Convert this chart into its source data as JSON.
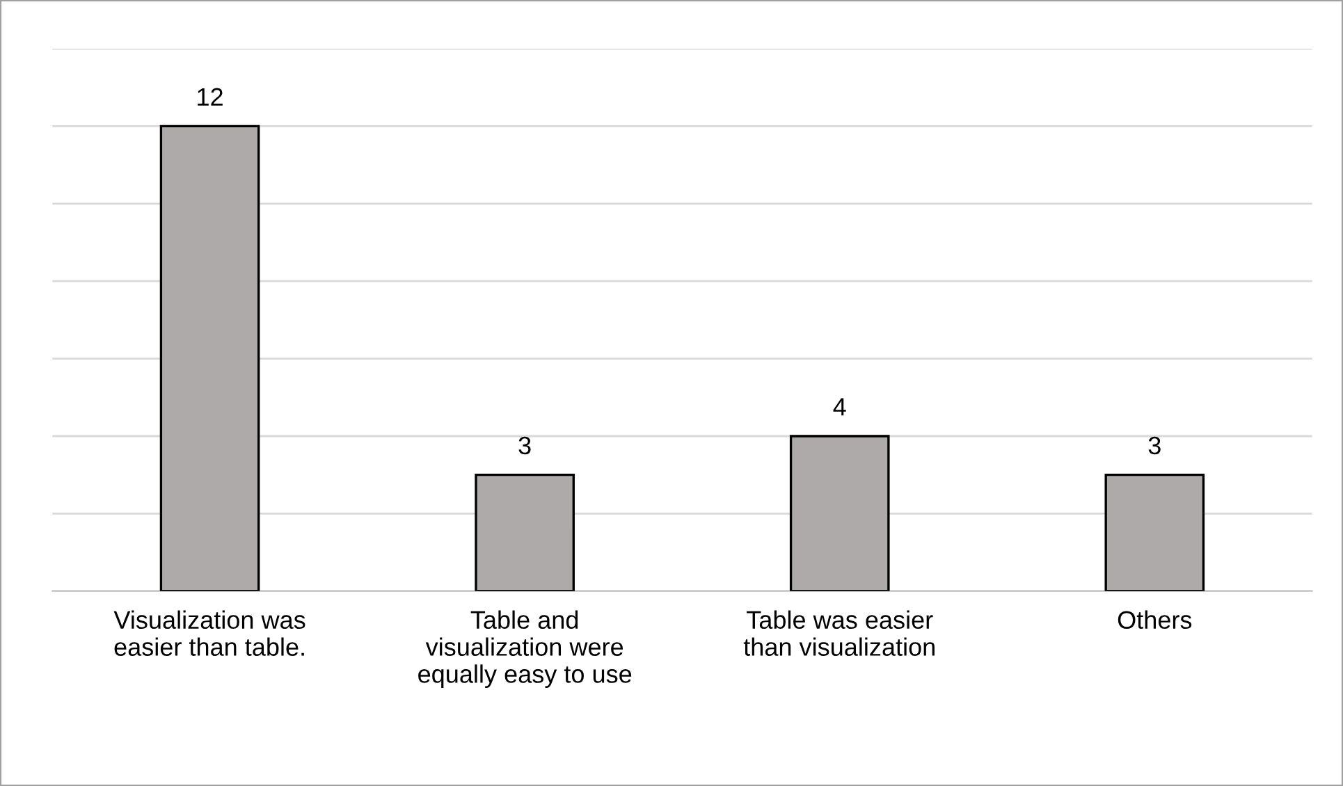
{
  "chart_data": {
    "type": "bar",
    "categories": [
      "Visualization was\neasier than table.",
      "Table and\nvisualization were\nequally easy to use",
      "Table was easier\nthan visualization",
      "Others"
    ],
    "values": [
      12,
      3,
      4,
      3
    ],
    "color": "#aeaaaa",
    "data_labels": true,
    "ylim": [
      0,
      14
    ],
    "yticks": [
      {
        "value": 0,
        "label": null
      },
      {
        "value": 2,
        "label": null
      },
      {
        "value": 4,
        "label": null
      },
      {
        "value": 6,
        "label": null
      },
      {
        "value": 8,
        "label": null
      },
      {
        "value": 10,
        "label": null
      },
      {
        "value": 12,
        "label": null
      },
      {
        "value": 14,
        "label": null
      }
    ],
    "grid": "y",
    "tick_labels": "x"
  }
}
